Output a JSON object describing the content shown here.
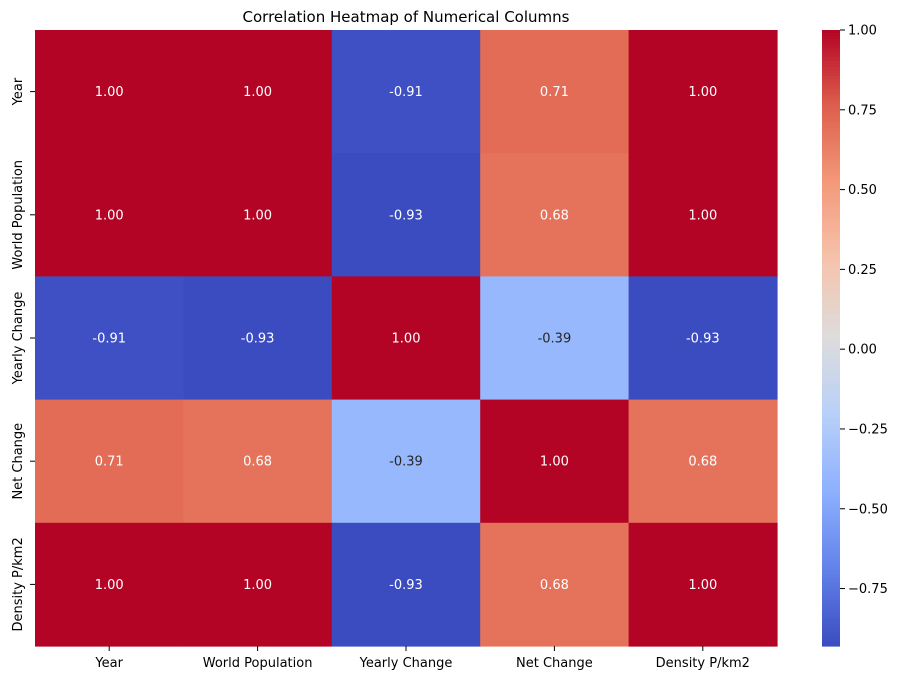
{
  "chart_data": {
    "type": "heatmap",
    "title": "Correlation Heatmap of Numerical Columns",
    "x_categories": [
      "Year",
      "World Population",
      "Yearly Change",
      "Net Change",
      "Density P/km2"
    ],
    "y_categories": [
      "Year",
      "World Population",
      "Yearly Change",
      "Net Change",
      "Density P/km2"
    ],
    "values": [
      [
        1.0,
        1.0,
        -0.91,
        0.71,
        1.0
      ],
      [
        1.0,
        1.0,
        -0.93,
        0.68,
        1.0
      ],
      [
        -0.91,
        -0.93,
        1.0,
        -0.39,
        -0.93
      ],
      [
        0.71,
        0.68,
        -0.39,
        1.0,
        0.68
      ],
      [
        1.0,
        1.0,
        -0.93,
        0.68,
        1.0
      ]
    ],
    "value_format": "0.00",
    "colormap": "coolwarm",
    "color_range": [
      -0.93,
      1.0
    ],
    "colorbar_ticks": [
      1.0,
      0.75,
      0.5,
      0.25,
      0.0,
      -0.25,
      -0.5,
      -0.75
    ],
    "colorbar_tick_labels": [
      "1.00",
      "0.75",
      "0.50",
      "0.25",
      "0.00",
      "−0.25",
      "−0.50",
      "−0.75"
    ],
    "colors": {
      "low": "#3b4cc0",
      "mid": "#dddcdc",
      "high": "#b40426"
    }
  }
}
